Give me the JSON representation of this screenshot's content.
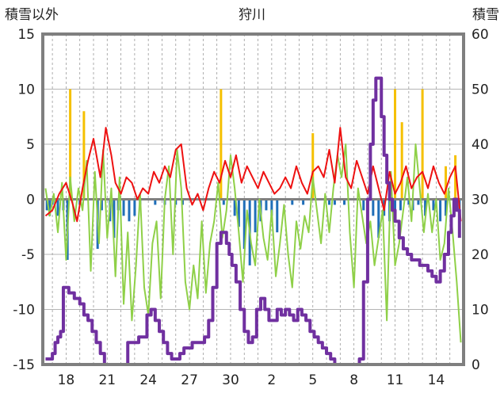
{
  "chart_data": {
    "type": "line",
    "title": "狩川",
    "ylabel_left": "積雪以外",
    "ylabel_right": "積雪",
    "ylim_left": [
      -15,
      15
    ],
    "yticks_left": [
      "15",
      "10",
      "5",
      "0",
      "-5",
      "-10",
      "-15"
    ],
    "ylim_right": [
      0,
      60
    ],
    "yticks_right": [
      "60",
      "50",
      "40",
      "30",
      "20",
      "10",
      "0"
    ],
    "x_day_range": [
      16.3,
      47.0
    ],
    "xticks": [
      {
        "day": 18,
        "label": "18"
      },
      {
        "day": 21,
        "label": "21"
      },
      {
        "day": 24,
        "label": "24"
      },
      {
        "day": 27,
        "label": "27"
      },
      {
        "day": 30,
        "label": "30"
      },
      {
        "day": 33,
        "label": "2"
      },
      {
        "day": 36,
        "label": "5"
      },
      {
        "day": 39,
        "label": "8"
      },
      {
        "day": 42,
        "label": "11"
      },
      {
        "day": 45,
        "label": "14"
      }
    ],
    "grid": true,
    "colors": {
      "red": "#ee1111",
      "green": "#8fd048",
      "purple": "#7030a0",
      "blue": "#1f6eb8",
      "yellow": "#f5c000",
      "zero_line": "#808080",
      "frame": "#7f7f7f"
    },
    "series": [
      {
        "axis": "left",
        "style": "red",
        "x": [
          16.5,
          17.0,
          17.5,
          18.0,
          18.5,
          18.8,
          19.2,
          19.6,
          20.0,
          20.5,
          20.9,
          21.3,
          21.6,
          22.0,
          22.4,
          22.8,
          23.2,
          23.6,
          24.0,
          24.4,
          24.8,
          25.2,
          25.6,
          26.0,
          26.4,
          26.8,
          27.2,
          27.6,
          28.0,
          28.4,
          28.8,
          29.2,
          29.6,
          30.0,
          30.4,
          30.8,
          31.2,
          31.6,
          32.0,
          32.4,
          32.8,
          33.2,
          33.6,
          34.0,
          34.4,
          34.8,
          35.2,
          35.6,
          36.0,
          36.4,
          36.8,
          37.2,
          37.6,
          38.0,
          38.4,
          38.8,
          39.2,
          39.6,
          40.0,
          40.4,
          40.8,
          41.2,
          41.6,
          42.0,
          42.4,
          42.8,
          43.2,
          43.6,
          44.0,
          44.4,
          44.8,
          45.2,
          45.6,
          46.0,
          46.4,
          46.8
        ],
        "y": [
          -1.5,
          -1.0,
          0.5,
          1.5,
          -0.5,
          -2.0,
          1.0,
          3.5,
          5.5,
          2.0,
          6.5,
          4.0,
          1.5,
          0.5,
          2.0,
          1.5,
          0.0,
          1.0,
          0.5,
          2.5,
          1.5,
          3.0,
          2.0,
          4.5,
          5.0,
          1.0,
          -0.5,
          0.5,
          -1.0,
          1.0,
          2.5,
          1.5,
          3.5,
          2.0,
          4.0,
          1.5,
          3.0,
          2.0,
          1.0,
          2.5,
          1.5,
          0.5,
          1.0,
          2.0,
          1.0,
          3.0,
          1.5,
          0.5,
          2.5,
          3.0,
          2.0,
          4.5,
          1.5,
          6.5,
          2.0,
          1.0,
          3.5,
          2.0,
          0.5,
          3.0,
          1.0,
          -1.0,
          2.5,
          0.5,
          1.5,
          3.0,
          1.0,
          2.0,
          2.5,
          1.0,
          3.0,
          1.5,
          0.5,
          2.0,
          3.0,
          -2.0
        ]
      },
      {
        "axis": "left",
        "style": "green",
        "x": [
          16.5,
          16.8,
          17.1,
          17.4,
          17.7,
          18.0,
          18.3,
          18.6,
          18.9,
          19.2,
          19.5,
          19.8,
          20.1,
          20.4,
          20.7,
          21.0,
          21.3,
          21.6,
          21.9,
          22.2,
          22.5,
          22.8,
          23.1,
          23.4,
          23.7,
          24.0,
          24.3,
          24.6,
          24.9,
          25.2,
          25.5,
          25.8,
          26.1,
          26.4,
          26.7,
          27.0,
          27.3,
          27.6,
          27.9,
          28.2,
          28.5,
          28.8,
          29.1,
          29.4,
          29.7,
          30.0,
          30.3,
          30.6,
          30.9,
          31.2,
          31.5,
          31.8,
          32.1,
          32.4,
          32.7,
          33.0,
          33.3,
          33.6,
          33.9,
          34.2,
          34.5,
          34.8,
          35.1,
          35.4,
          35.7,
          36.0,
          36.3,
          36.6,
          36.9,
          37.2,
          37.5,
          37.8,
          38.1,
          38.4,
          38.7,
          39.0,
          39.3,
          39.6,
          39.9,
          40.2,
          40.5,
          40.8,
          41.1,
          41.4,
          41.7,
          42.0,
          42.3,
          42.6,
          42.9,
          43.2,
          43.5,
          43.8,
          44.1,
          44.4,
          44.7,
          45.0,
          45.3,
          45.6,
          45.9,
          46.2,
          46.5,
          46.8
        ],
        "y": [
          1.0,
          -1.5,
          0.5,
          -3.0,
          1.5,
          -5.5,
          2.0,
          -2.0,
          1.0,
          -1.0,
          3.5,
          -6.5,
          2.5,
          -4.0,
          4.5,
          -3.5,
          1.0,
          -7.0,
          2.0,
          -9.5,
          -3.0,
          -11.0,
          -6.0,
          0.5,
          -8.0,
          -10.5,
          -4.0,
          -2.0,
          -9.0,
          0.0,
          3.0,
          -5.0,
          4.5,
          1.0,
          -7.5,
          -10.0,
          -6.0,
          -9.0,
          -2.0,
          -8.5,
          -4.0,
          -2.0,
          1.5,
          -3.5,
          -1.0,
          4.0,
          1.0,
          -3.0,
          -7.5,
          -1.0,
          -4.0,
          -6.0,
          0.0,
          -3.5,
          -5.5,
          -1.0,
          -7.0,
          -4.0,
          -0.5,
          -5.0,
          -8.0,
          -2.0,
          -4.5,
          -1.5,
          -3.0,
          2.0,
          -1.0,
          -4.0,
          0.5,
          -3.0,
          1.0,
          4.0,
          2.0,
          5.0,
          -3.0,
          -8.0,
          1.0,
          -1.5,
          -4.0,
          -2.0,
          -6.0,
          -3.5,
          -1.0,
          -11.0,
          2.5,
          -6.0,
          -4.0,
          -1.0,
          2.0,
          -2.0,
          5.0,
          1.0,
          -3.0,
          0.5,
          -3.0,
          0.0,
          -5.5,
          -4.0,
          1.0,
          -3.0,
          -7.5,
          -13.0
        ]
      },
      {
        "axis": "right",
        "style": "purple",
        "x": [
          16.5,
          16.8,
          17.0,
          17.2,
          17.4,
          17.6,
          17.8,
          18.0,
          18.2,
          18.4,
          18.6,
          18.8,
          19.0,
          19.3,
          19.6,
          19.9,
          20.2,
          20.5,
          20.8,
          21.0,
          21.3,
          21.6,
          21.9,
          22.2,
          22.5,
          22.8,
          23.0,
          23.3,
          23.6,
          23.9,
          24.2,
          24.5,
          24.8,
          25.1,
          25.4,
          25.7,
          26.0,
          26.3,
          26.6,
          26.9,
          27.2,
          27.5,
          27.8,
          28.1,
          28.4,
          28.7,
          29.0,
          29.3,
          29.5,
          29.7,
          29.9,
          30.1,
          30.4,
          30.7,
          31.0,
          31.3,
          31.6,
          31.9,
          32.2,
          32.5,
          32.8,
          33.1,
          33.4,
          33.7,
          34.0,
          34.3,
          34.6,
          34.9,
          35.2,
          35.5,
          35.8,
          36.1,
          36.4,
          36.7,
          37.0,
          37.3,
          37.6,
          37.9,
          38.2,
          38.5,
          38.8,
          39.1,
          39.4,
          39.7,
          40.0,
          40.2,
          40.4,
          40.6,
          40.8,
          41.0,
          41.2,
          41.4,
          41.6,
          41.8,
          42.0,
          42.3,
          42.6,
          42.9,
          43.2,
          43.5,
          43.8,
          44.1,
          44.4,
          44.7,
          45.0,
          45.3,
          45.6,
          45.9,
          46.1,
          46.3,
          46.5,
          46.7
        ],
        "y": [
          1,
          1,
          2,
          4,
          5,
          6,
          14,
          14,
          13,
          13,
          12,
          12,
          11,
          9,
          8,
          6,
          4,
          2,
          0,
          0,
          0,
          0,
          0,
          0,
          4,
          4,
          4,
          5,
          5,
          9,
          10,
          8,
          6,
          4,
          2,
          1,
          1,
          2,
          3,
          3,
          4,
          4,
          4,
          5,
          8,
          14,
          22,
          24,
          24,
          22,
          20,
          18,
          15,
          10,
          6,
          4,
          5,
          10,
          12,
          10,
          8,
          8,
          10,
          9,
          10,
          9,
          8,
          10,
          9,
          8,
          6,
          5,
          4,
          3,
          2,
          1,
          0,
          0,
          0,
          0,
          0,
          0,
          1,
          15,
          30,
          40,
          48,
          52,
          52,
          45,
          38,
          33,
          30,
          28,
          26,
          23,
          21,
          20,
          19,
          19,
          18,
          18,
          17,
          16,
          15,
          17,
          20,
          24,
          27,
          30,
          28,
          23
        ]
      },
      {
        "axis": "left",
        "style": "blue-bars",
        "x": [
          16.6,
          16.8,
          17.0,
          17.4,
          17.8,
          18.1,
          19.0,
          20.3,
          20.6,
          21.2,
          21.5,
          21.8,
          22.2,
          22.6,
          23.0,
          23.4,
          24.5,
          25.2,
          26.0,
          26.5,
          29.5,
          30.3,
          30.6,
          31.0,
          31.4,
          31.8,
          32.2,
          32.6,
          33.0,
          33.4,
          34.5,
          35.3,
          37.2,
          37.6,
          38.3,
          39.7,
          40.4,
          40.8,
          41.2,
          41.6,
          42.0,
          42.4,
          43.0,
          43.3,
          43.7,
          44.2,
          44.8,
          45.3,
          45.7,
          46.3,
          46.7
        ],
        "y": [
          -1.0,
          -1.5,
          -0.5,
          -1.5,
          -1.0,
          -5.5,
          -0.5,
          -4.5,
          -1.0,
          -2.0,
          -3.5,
          -1.0,
          -1.5,
          -2.0,
          -1.5,
          -0.5,
          -0.5,
          -0.5,
          -0.5,
          -0.5,
          -0.5,
          -1.5,
          -2.5,
          -4.5,
          -6.0,
          -3.0,
          -2.0,
          -1.0,
          -1.5,
          -3.0,
          -0.5,
          -0.5,
          -0.5,
          -0.5,
          -0.5,
          -1.0,
          -1.5,
          -3.5,
          -1.5,
          -2.0,
          -1.5,
          -1.0,
          -0.5,
          -1.0,
          -0.5,
          -1.5,
          -1.0,
          -2.0,
          -1.5,
          -0.5,
          -1.0
        ]
      },
      {
        "axis": "left",
        "style": "yellow-bars",
        "x": [
          18.3,
          19.3,
          29.3,
          36.0,
          42.0,
          42.5,
          44.0,
          45.7,
          46.4
        ],
        "y": [
          10.0,
          8.0,
          10.0,
          6.0,
          10.0,
          7.0,
          10.0,
          3.0,
          4.0
        ]
      }
    ]
  }
}
